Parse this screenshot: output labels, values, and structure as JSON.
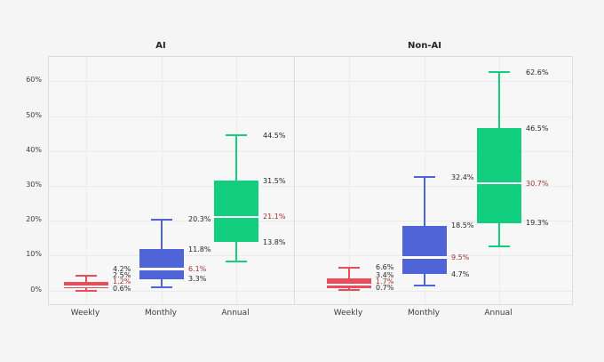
{
  "chart_data": {
    "type": "box",
    "title": "",
    "legend_position": "none",
    "x_axis": {
      "categories": [
        "Weekly",
        "Monthly",
        "Annual"
      ]
    },
    "y_axis": {
      "range": [
        -4.6,
        66.8
      ],
      "grid": true,
      "ticks": [
        {
          "label": "0%",
          "value": 0
        },
        {
          "label": "10%",
          "value": 10
        },
        {
          "label": "20%",
          "value": 20
        },
        {
          "label": "30%",
          "value": 30
        },
        {
          "label": "40%",
          "value": 40
        },
        {
          "label": "50%",
          "value": 50
        },
        {
          "label": "60%",
          "value": 60
        }
      ]
    },
    "panels": [
      {
        "title": "AI",
        "boxes": [
          {
            "category": "Weekly",
            "series": "weekly",
            "whisker_low": 0.0,
            "q1": 0.6,
            "median": 1.2,
            "q3": 2.5,
            "whisker_high": 4.2,
            "labels": {
              "whisker_high": "4.2%",
              "q3": "2.5%",
              "median": "1.2%",
              "q1": "0.6%"
            }
          },
          {
            "category": "Monthly",
            "series": "monthly",
            "whisker_low": 1.0,
            "q1": 3.3,
            "median": 6.1,
            "q3": 11.8,
            "whisker_high": 20.3,
            "labels": {
              "whisker_high": "20.3%",
              "q3": "11.8%",
              "median": "6.1%",
              "q1": "3.3%"
            }
          },
          {
            "category": "Annual",
            "series": "annual",
            "whisker_low": 8.3,
            "q1": 13.8,
            "median": 21.1,
            "q3": 31.5,
            "whisker_high": 44.5,
            "labels": {
              "whisker_high": "44.5%",
              "q3": "31.5%",
              "median": "21.1%",
              "q1": "13.8%"
            }
          }
        ]
      },
      {
        "title": "Non-AI",
        "boxes": [
          {
            "category": "Weekly",
            "series": "weekly",
            "whisker_low": 0.1,
            "q1": 0.7,
            "median": 1.7,
            "q3": 3.4,
            "whisker_high": 6.6,
            "labels": {
              "whisker_high": "6.6%",
              "q3": "3.4%",
              "median": "1.7%",
              "q1": "0.7%"
            }
          },
          {
            "category": "Monthly",
            "series": "monthly",
            "whisker_low": 1.5,
            "q1": 4.7,
            "median": 9.5,
            "q3": 18.5,
            "whisker_high": 32.4,
            "labels": {
              "whisker_high": "32.4%",
              "q3": "18.5%",
              "median": "9.5%",
              "q1": "4.7%"
            }
          },
          {
            "category": "Annual",
            "series": "annual",
            "whisker_low": 12.7,
            "q1": 19.3,
            "median": 30.7,
            "q3": 46.5,
            "whisker_high": 62.6,
            "labels": {
              "whisker_high": "62.6%",
              "q3": "46.5%",
              "median": "30.7%",
              "q1": "19.3%"
            }
          }
        ]
      }
    ],
    "colors": {
      "weekly": "#EA4C59",
      "monthly": "#4F64D6",
      "annual": "#12CF80",
      "median_line": "#FFFFFF",
      "label_text": "#262626",
      "median_label_text": "#A5302D",
      "tick_text": "#3c3c3c"
    }
  }
}
